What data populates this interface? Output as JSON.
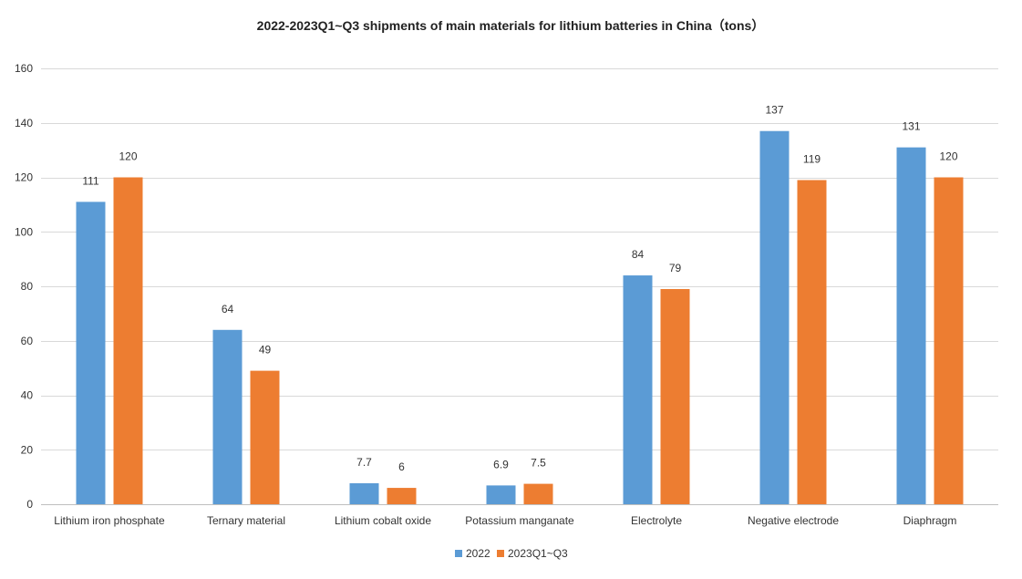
{
  "chart_data": {
    "type": "bar",
    "title": "2022-2023Q1~Q3 shipments of main materials for lithium batteries in China（tons）",
    "xlabel": "",
    "ylabel": "",
    "ylim": [
      0,
      160
    ],
    "yticks": [
      "0",
      "20",
      "40",
      "60",
      "80",
      "100",
      "120",
      "140",
      "160"
    ],
    "grid": true,
    "legend_position": "bottom",
    "categories": [
      "Lithium iron phosphate",
      "Ternary material",
      "Lithium cobalt oxide",
      "Potassium manganate",
      "Electrolyte",
      "Negative electrode",
      "Diaphragm"
    ],
    "series": [
      {
        "name": "2022",
        "color": "#5B9BD5",
        "values": [
          111,
          64,
          7.7,
          6.9,
          84,
          137,
          131
        ],
        "labels": [
          "111",
          "64",
          "7.7",
          "6.9",
          "84",
          "137",
          "131"
        ]
      },
      {
        "name": "2023Q1~Q3",
        "color": "#ED7D31",
        "values": [
          120,
          49,
          6,
          7.5,
          79,
          119,
          120
        ],
        "labels": [
          "120",
          "49",
          "6",
          "7.5",
          "79",
          "119",
          "120"
        ]
      }
    ]
  }
}
